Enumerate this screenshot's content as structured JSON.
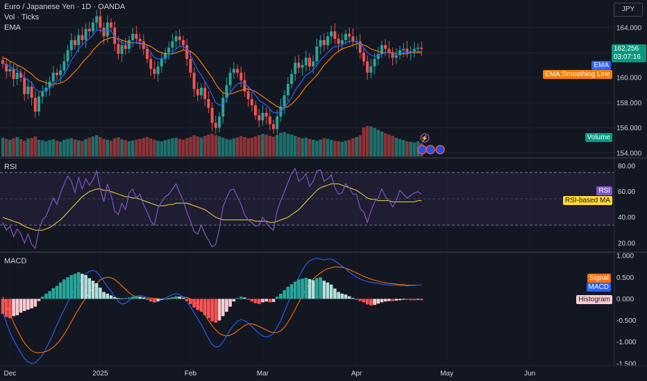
{
  "header": {
    "symbol_line": "Euro / Japanese Yen · 1D · OANDA",
    "vol_line": "Vol · Ticks",
    "ema_line": "EMA"
  },
  "currency_button": "JPY",
  "price_tag": {
    "price": "162.256",
    "countdown": "03:07:16"
  },
  "labels": {
    "ema": "EMA",
    "ema_smoothing": "EMA:Smoothing Line",
    "volume": "Volume",
    "rsi_title": "RSI",
    "rsi": "RSI",
    "rsi_ma": "RSI-based MA",
    "macd_title": "MACD",
    "signal": "Signal",
    "macd": "MACD",
    "histogram": "Histogram"
  },
  "colors": {
    "up": "#26a69a",
    "down": "#ef5350",
    "ema": "#2962ff",
    "ema_smooth": "#f57c00",
    "rsi": "#7e57c2",
    "rsi_ma": "#fdd835",
    "macd": "#2962ff",
    "signal": "#ff6d00"
  },
  "chart_data": [
    {
      "type": "candlestick",
      "title": "Euro / Japanese Yen · 1D · OANDA",
      "ylim": [
        153.6,
        166.2
      ],
      "y_ticks": [
        "164.000",
        "162.000",
        "160.000",
        "158.000",
        "156.000",
        "154.000"
      ],
      "x_ticks": [
        "Dec",
        "2025",
        "Feb",
        "Mar",
        "Apr",
        "May",
        "Jun"
      ],
      "last_price": 162.256,
      "close": [
        161.1,
        160.5,
        160.7,
        159.9,
        160.4,
        160.0,
        158.7,
        159.3,
        158.4,
        157.3,
        158.5,
        158.9,
        159.2,
        159.7,
        160.4,
        160.2,
        160.6,
        161.3,
        162.2,
        163.0,
        162.6,
        163.4,
        163.0,
        163.9,
        163.7,
        164.4,
        164.9,
        164.0,
        163.3,
        164.4,
        164.0,
        162.7,
        161.9,
        162.6,
        162.3,
        163.0,
        163.5,
        163.1,
        162.9,
        162.3,
        161.5,
        160.7,
        160.3,
        160.9,
        161.5,
        162.0,
        162.4,
        162.9,
        163.3,
        163.0,
        162.6,
        161.5,
        160.4,
        159.1,
        158.6,
        159.2,
        158.3,
        157.6,
        156.4,
        156.0,
        156.9,
        158.4,
        159.4,
        160.4,
        160.7,
        160.4,
        159.8,
        158.9,
        158.3,
        157.8,
        157.0,
        156.6,
        157.2,
        156.9,
        156.3,
        155.9,
        156.9,
        157.7,
        158.6,
        159.5,
        160.3,
        161.2,
        160.8,
        161.0,
        161.6,
        160.9,
        161.3,
        162.5,
        163.0,
        162.6,
        163.3,
        163.7,
        163.1,
        162.7,
        163.0,
        163.5,
        163.3,
        162.9,
        162.9,
        162.0,
        161.3,
        160.4,
        160.9,
        161.5,
        161.9,
        162.6,
        162.3,
        162.0,
        161.6,
        161.8,
        162.2,
        162.3,
        162.0,
        162.1,
        162.3,
        162.4,
        162.3
      ],
      "ema": [
        161.2,
        161.0,
        160.9,
        160.7,
        160.6,
        160.4,
        160.0,
        159.8,
        159.6,
        159.1,
        158.9,
        158.9,
        159.0,
        159.2,
        159.5,
        159.7,
        159.9,
        160.3,
        160.8,
        161.4,
        161.8,
        162.3,
        162.6,
        162.9,
        163.1,
        163.4,
        163.8,
        163.8,
        163.7,
        163.8,
        163.7,
        163.3,
        163.0,
        162.8,
        162.7,
        162.7,
        162.8,
        162.8,
        162.8,
        162.6,
        162.4,
        162.0,
        161.6,
        161.5,
        161.5,
        161.6,
        161.8,
        162.0,
        162.3,
        162.5,
        162.5,
        162.3,
        161.8,
        161.2,
        160.6,
        160.2,
        159.7,
        159.2,
        158.6,
        158.0,
        157.8,
        157.9,
        158.3,
        158.8,
        159.2,
        159.5,
        159.6,
        159.5,
        159.3,
        159.0,
        158.6,
        158.2,
        158.0,
        157.8,
        157.5,
        157.2,
        157.2,
        157.3,
        157.6,
        158.0,
        158.4,
        159.0,
        159.4,
        159.8,
        160.2,
        160.4,
        160.6,
        161.0,
        161.4,
        161.7,
        162.0,
        162.3,
        162.5,
        162.5,
        162.6,
        162.8,
        162.9,
        162.9,
        162.9,
        162.7,
        162.4,
        162.0,
        161.8,
        161.7,
        161.8,
        161.9,
        162.0,
        162.0,
        161.9,
        161.9,
        161.9,
        162.0,
        162.0,
        162.0,
        162.1,
        162.1,
        162.1
      ],
      "ema_smoothing": [
        161.6,
        161.5,
        161.3,
        161.2,
        161.0,
        160.9,
        160.7,
        160.5,
        160.3,
        160.0,
        159.8,
        159.7,
        159.6,
        159.5,
        159.5,
        159.5,
        159.6,
        159.7,
        159.9,
        160.2,
        160.5,
        160.8,
        161.2,
        161.5,
        161.8,
        162.2,
        162.5,
        162.8,
        163.0,
        163.1,
        163.2,
        163.2,
        163.1,
        163.0,
        162.9,
        162.8,
        162.8,
        162.8,
        162.7,
        162.7,
        162.6,
        162.5,
        162.3,
        162.1,
        162.0,
        161.9,
        161.9,
        161.9,
        162.0,
        162.1,
        162.2,
        162.2,
        162.1,
        161.9,
        161.6,
        161.2,
        160.8,
        160.4,
        160.0,
        159.5,
        159.1,
        158.8,
        158.7,
        158.7,
        158.8,
        158.9,
        159.0,
        159.1,
        159.1,
        159.0,
        158.9,
        158.7,
        158.5,
        158.3,
        158.1,
        157.9,
        157.7,
        157.6,
        157.6,
        157.7,
        157.9,
        158.2,
        158.5,
        158.9,
        159.3,
        159.6,
        159.9,
        160.2,
        160.6,
        161.0,
        161.3,
        161.6,
        161.9,
        162.1,
        162.3,
        162.4,
        162.5,
        162.6,
        162.7,
        162.7,
        162.6,
        162.5,
        162.3,
        162.2,
        162.1,
        162.0,
        162.0,
        162.0,
        162.0,
        161.9,
        161.9,
        161.9,
        161.9,
        162.0,
        162.0,
        162.0,
        162.0
      ]
    },
    {
      "type": "bar",
      "title": "Vol · Ticks",
      "values": [
        62,
        58,
        55,
        60,
        64,
        57,
        52,
        59,
        61,
        66,
        55,
        53,
        50,
        54,
        57,
        52,
        49,
        55,
        58,
        60,
        56,
        53,
        51,
        57,
        62,
        66,
        70,
        64,
        58,
        55,
        52,
        60,
        63,
        57,
        54,
        50,
        53,
        56,
        58,
        61,
        64,
        59,
        55,
        52,
        50,
        54,
        57,
        60,
        62,
        58,
        55,
        60,
        64,
        70,
        66,
        62,
        68,
        72,
        75,
        70,
        66,
        62,
        58,
        56,
        60,
        63,
        67,
        64,
        60,
        62,
        66,
        70,
        74,
        72,
        68,
        65,
        70,
        78,
        80,
        75,
        72,
        68,
        64,
        60,
        62,
        58,
        55,
        52,
        56,
        60,
        58,
        55,
        52,
        50,
        48,
        52,
        55,
        60,
        64,
        70,
        96,
        100,
        99,
        94,
        88,
        82,
        76,
        72,
        68,
        62,
        58,
        54,
        50,
        48,
        46,
        50,
        44
      ],
      "ylim": [
        0,
        100
      ]
    },
    {
      "type": "line",
      "title": "RSI",
      "ylim": [
        14,
        84
      ],
      "y_ticks": [
        "80.00",
        "60.00",
        "40.00",
        "20.00"
      ],
      "band": [
        30,
        70
      ],
      "series": [
        {
          "name": "RSI",
          "values": [
            36,
            30,
            33,
            25,
            31,
            27,
            20,
            27,
            19,
            16,
            30,
            38,
            41,
            48,
            55,
            50,
            59,
            66,
            72,
            68,
            59,
            71,
            62,
            70,
            65,
            69,
            76,
            62,
            52,
            66,
            57,
            45,
            42,
            51,
            46,
            59,
            62,
            55,
            58,
            50,
            44,
            37,
            34,
            47,
            52,
            56,
            58,
            62,
            66,
            59,
            53,
            44,
            37,
            29,
            27,
            34,
            27,
            22,
            17,
            19,
            31,
            48,
            55,
            61,
            62,
            56,
            50,
            42,
            38,
            36,
            33,
            34,
            40,
            36,
            32,
            30,
            45,
            53,
            60,
            67,
            74,
            78,
            68,
            70,
            74,
            64,
            68,
            76,
            77,
            68,
            70,
            73,
            63,
            58,
            59,
            66,
            63,
            58,
            58,
            47,
            44,
            36,
            45,
            52,
            55,
            62,
            56,
            53,
            48,
            53,
            61,
            58,
            55,
            57,
            59,
            60,
            58
          ]
        },
        {
          "name": "RSI-based MA",
          "values": [
            40,
            39,
            38,
            37,
            36,
            35,
            33,
            32,
            31,
            30,
            30,
            30,
            31,
            32,
            34,
            36,
            38,
            41,
            44,
            47,
            50,
            53,
            56,
            58,
            60,
            61,
            62,
            62,
            61,
            61,
            60,
            59,
            58,
            57,
            56,
            56,
            55,
            55,
            54,
            53,
            52,
            51,
            50,
            49,
            49,
            49,
            50,
            50,
            51,
            51,
            51,
            51,
            50,
            49,
            48,
            47,
            46,
            44,
            42,
            40,
            39,
            38,
            38,
            38,
            38,
            38,
            38,
            38,
            38,
            38,
            37,
            37,
            37,
            37,
            36,
            36,
            37,
            38,
            39,
            40,
            42,
            44,
            46,
            49,
            52,
            55,
            58,
            61,
            63,
            64,
            65,
            66,
            66,
            66,
            65,
            64,
            63,
            62,
            61,
            59,
            57,
            55,
            54,
            54,
            53,
            53,
            53,
            53,
            52,
            52,
            52,
            52,
            52,
            52,
            52,
            53,
            53
          ]
        }
      ]
    },
    {
      "type": "bar",
      "title": "MACD",
      "ylim": [
        -1.55,
        1.05
      ],
      "y_ticks": [
        "1.000",
        "0.500",
        "0.000",
        "-0.500",
        "-1.000",
        "-1.500"
      ],
      "series": [
        {
          "name": "Histogram",
          "values": [
            -0.35,
            -0.42,
            -0.45,
            -0.4,
            -0.38,
            -0.32,
            -0.28,
            -0.25,
            -0.22,
            -0.18,
            -0.05,
            0.05,
            0.12,
            0.18,
            0.25,
            0.3,
            0.38,
            0.45,
            0.5,
            0.55,
            0.58,
            0.62,
            0.58,
            0.55,
            0.48,
            0.42,
            0.36,
            0.26,
            0.16,
            0.12,
            0.08,
            0.04,
            0.02,
            0.01,
            0.02,
            0.03,
            0.05,
            0.06,
            0.05,
            0.03,
            -0.02,
            -0.06,
            -0.08,
            -0.05,
            -0.02,
            0.0,
            0.02,
            0.04,
            0.06,
            0.05,
            0.02,
            -0.05,
            -0.12,
            -0.2,
            -0.26,
            -0.3,
            -0.38,
            -0.45,
            -0.52,
            -0.55,
            -0.5,
            -0.4,
            -0.3,
            -0.18,
            -0.06,
            0.02,
            0.05,
            0.03,
            -0.02,
            -0.06,
            -0.1,
            -0.12,
            -0.08,
            -0.06,
            -0.08,
            -0.07,
            0.05,
            0.12,
            0.2,
            0.28,
            0.34,
            0.4,
            0.45,
            0.47,
            0.49,
            0.46,
            0.43,
            0.48,
            0.5,
            0.42,
            0.38,
            0.33,
            0.24,
            0.16,
            0.12,
            0.1,
            0.06,
            0.02,
            -0.02,
            -0.05,
            -0.08,
            -0.13,
            -0.15,
            -0.14,
            -0.11,
            -0.08,
            -0.06,
            -0.05,
            -0.05,
            -0.04,
            -0.03,
            -0.02,
            -0.02,
            -0.03,
            -0.03,
            -0.02,
            -0.03
          ]
        },
        {
          "name": "MACD",
          "values": [
            -0.3,
            -0.55,
            -0.78,
            -0.95,
            -1.1,
            -1.25,
            -1.38,
            -1.46,
            -1.5,
            -1.48,
            -1.4,
            -1.3,
            -1.15,
            -0.98,
            -0.8,
            -0.6,
            -0.42,
            -0.25,
            -0.08,
            0.08,
            0.22,
            0.36,
            0.48,
            0.58,
            0.64,
            0.66,
            0.62,
            0.52,
            0.4,
            0.28,
            0.18,
            0.06,
            -0.06,
            -0.12,
            -0.1,
            -0.04,
            0.02,
            0.06,
            0.08,
            0.06,
            0.02,
            -0.04,
            -0.08,
            -0.06,
            -0.02,
            0.02,
            0.06,
            0.1,
            0.12,
            0.1,
            0.04,
            -0.06,
            -0.18,
            -0.32,
            -0.46,
            -0.6,
            -0.76,
            -0.92,
            -1.06,
            -1.12,
            -1.1,
            -1.0,
            -0.86,
            -0.72,
            -0.6,
            -0.52,
            -0.48,
            -0.5,
            -0.56,
            -0.64,
            -0.72,
            -0.8,
            -0.86,
            -0.88,
            -0.86,
            -0.8,
            -0.66,
            -0.5,
            -0.3,
            -0.1,
            0.1,
            0.3,
            0.5,
            0.66,
            0.8,
            0.88,
            0.92,
            0.94,
            0.92,
            0.9,
            0.92,
            0.92,
            0.88,
            0.82,
            0.76,
            0.7,
            0.62,
            0.56,
            0.5,
            0.46,
            0.43,
            0.4,
            0.38,
            0.37,
            0.36,
            0.34,
            0.33,
            0.32,
            0.32,
            0.32,
            0.31,
            0.31,
            0.3,
            0.31,
            0.31,
            0.32,
            0.32
          ]
        },
        {
          "name": "Signal",
          "values": [
            0.05,
            -0.13,
            -0.33,
            -0.55,
            -0.72,
            -0.88,
            -1.02,
            -1.12,
            -1.2,
            -1.24,
            -1.25,
            -1.24,
            -1.22,
            -1.18,
            -1.12,
            -1.04,
            -0.94,
            -0.82,
            -0.68,
            -0.53,
            -0.38,
            -0.24,
            -0.1,
            0.02,
            0.14,
            0.26,
            0.36,
            0.44,
            0.48,
            0.5,
            0.49,
            0.45,
            0.38,
            0.3,
            0.22,
            0.14,
            0.08,
            0.04,
            0.03,
            0.02,
            0.02,
            0.02,
            0.01,
            0.0,
            -0.01,
            -0.01,
            0.0,
            0.01,
            0.03,
            0.04,
            0.04,
            0.03,
            0.0,
            -0.06,
            -0.14,
            -0.24,
            -0.36,
            -0.5,
            -0.62,
            -0.72,
            -0.8,
            -0.84,
            -0.86,
            -0.84,
            -0.8,
            -0.74,
            -0.68,
            -0.62,
            -0.58,
            -0.58,
            -0.6,
            -0.64,
            -0.68,
            -0.72,
            -0.76,
            -0.78,
            -0.78,
            -0.74,
            -0.66,
            -0.54,
            -0.4,
            -0.24,
            -0.08,
            0.08,
            0.22,
            0.36,
            0.46,
            0.54,
            0.6,
            0.66,
            0.7,
            0.72,
            0.74,
            0.74,
            0.73,
            0.71,
            0.68,
            0.64,
            0.6,
            0.56,
            0.52,
            0.49,
            0.46,
            0.43,
            0.41,
            0.39,
            0.37,
            0.36,
            0.35,
            0.34,
            0.33,
            0.33,
            0.32,
            0.32,
            0.32,
            0.32,
            0.32
          ]
        }
      ]
    }
  ]
}
